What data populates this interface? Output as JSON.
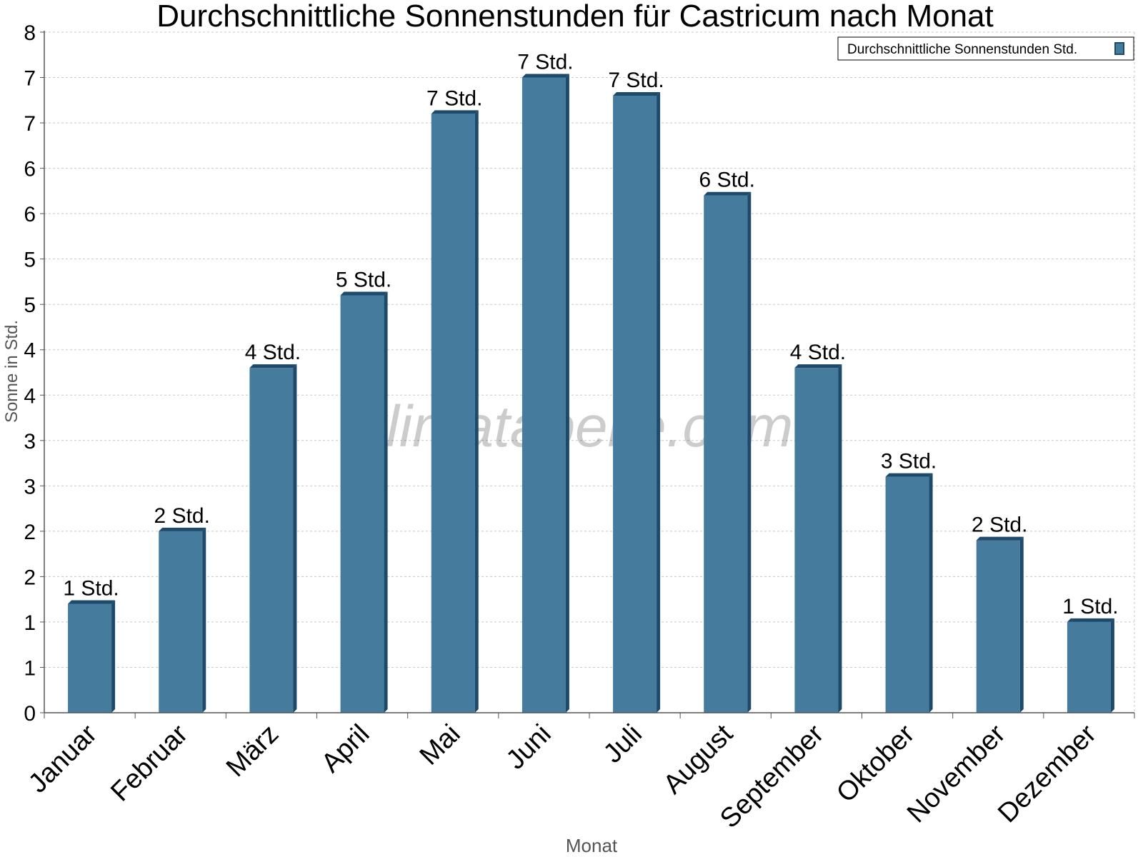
{
  "chart_data": {
    "type": "bar",
    "title": "Durchschnittliche Sonnenstunden für Castricum nach Monat",
    "xlabel": "Monat",
    "ylabel": "Sonne in Std.",
    "watermark": "klimatabelle.com",
    "legend": {
      "label": "Durchschnittliche Sonnenstunden Std.",
      "position": "top-right"
    },
    "categories": [
      "Januar",
      "Februar",
      "März",
      "April",
      "Mai",
      "Juni",
      "Juli",
      "August",
      "September",
      "Oktober",
      "November",
      "Dezember"
    ],
    "values": [
      1.2,
      2.0,
      3.8,
      4.6,
      6.6,
      7.0,
      6.8,
      5.7,
      3.8,
      2.6,
      1.9,
      1.0
    ],
    "data_labels": [
      "1 Std.",
      "2 Std.",
      "4 Std.",
      "5 Std.",
      "7 Std.",
      "7 Std.",
      "7 Std.",
      "6 Std.",
      "4 Std.",
      "3 Std.",
      "2 Std.",
      "1 Std."
    ],
    "ylim": [
      0,
      7.5
    ],
    "ytick_values": [
      0,
      0.5,
      1,
      1.5,
      2,
      2.5,
      3,
      3.5,
      4,
      4.5,
      5,
      5.5,
      6,
      6.5,
      7,
      7.5
    ],
    "ytick_labels": [
      "0",
      "1",
      "1",
      "2",
      "2",
      "3",
      "3",
      "4",
      "4",
      "5",
      "5",
      "6",
      "6",
      "7",
      "7",
      "8"
    ],
    "grid": true,
    "colors": {
      "bar": "#457b9d",
      "bar_side": "#1d4a6b",
      "bar_top": "#1d4a6b",
      "axis": "#555555",
      "grid": "#c8c8c8",
      "axis_title": "#555555"
    }
  }
}
